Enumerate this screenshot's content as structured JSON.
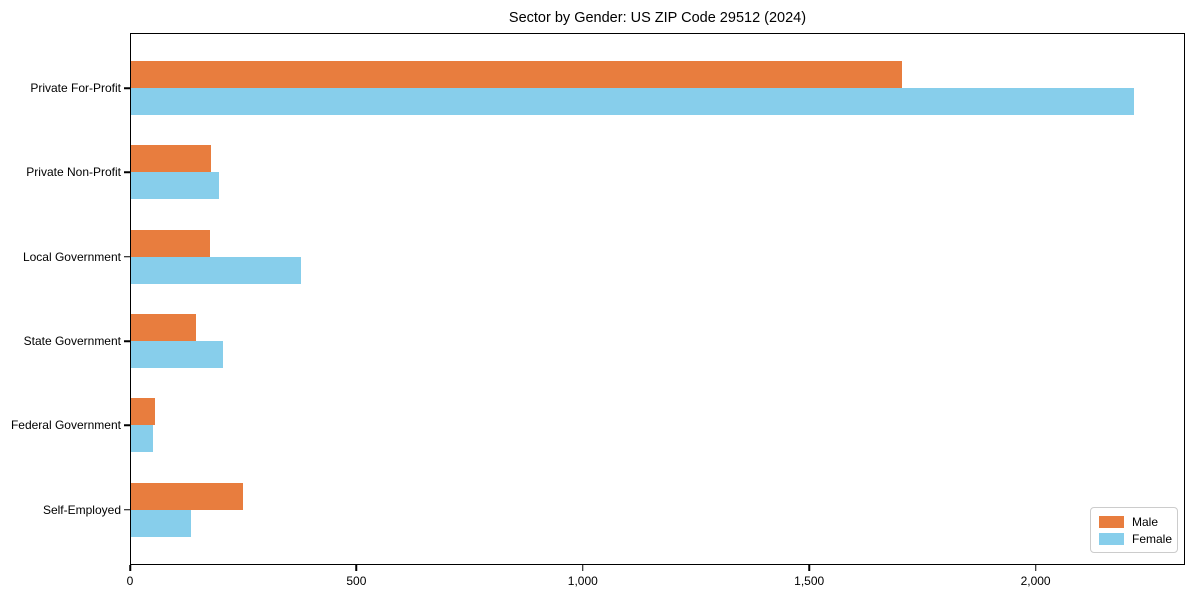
{
  "chart_data": {
    "type": "bar",
    "orientation": "horizontal",
    "title": "Sector by Gender: US ZIP Code 29512 (2024)",
    "categories": [
      "Private For-Profit",
      "Private Non-Profit",
      "Local Government",
      "State Government",
      "Federal Government",
      "Self-Employed"
    ],
    "series": [
      {
        "name": "Male",
        "color": "#E87D3E",
        "values": [
          1705,
          178,
          175,
          144,
          52,
          248
        ]
      },
      {
        "name": "Female",
        "color": "#87CEEB",
        "values": [
          2220,
          194,
          377,
          203,
          48,
          133
        ]
      }
    ],
    "xlabel": "",
    "ylabel": "",
    "xlim": [
      0,
      2330
    ],
    "x_ticks": [
      {
        "value": 0,
        "label": "0"
      },
      {
        "value": 500,
        "label": "500"
      },
      {
        "value": 1000,
        "label": "1,000"
      },
      {
        "value": 1500,
        "label": "1,500"
      },
      {
        "value": 2000,
        "label": "2,000"
      }
    ],
    "grid": false,
    "legend_position": "lower right",
    "background": "#ffffff"
  }
}
